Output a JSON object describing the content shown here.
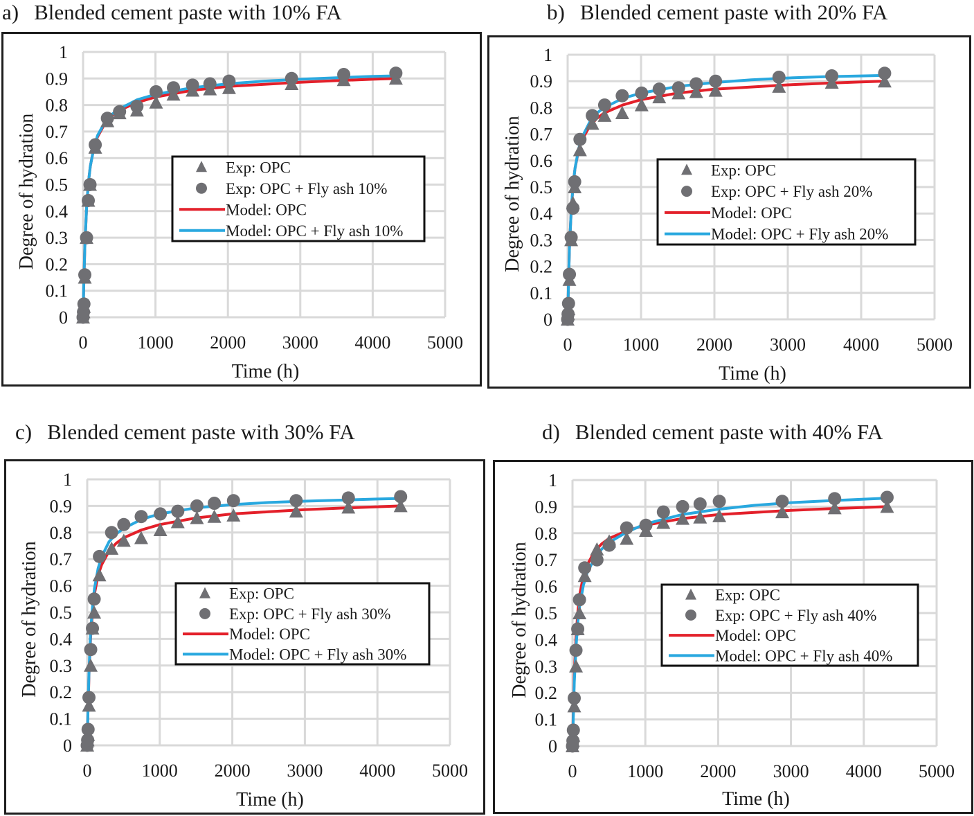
{
  "colors": {
    "marker": "#6f6f73",
    "model_opc": "#e3202a",
    "model_fa": "#29a8df",
    "grid": "#d9d9d9",
    "frame": "#1e1e1e"
  },
  "panels": [
    {
      "label": "a)",
      "title": "Blended cement paste with 10% FA"
    },
    {
      "label": "b)",
      "title": "Blended cement paste with 20% FA"
    },
    {
      "label": "c)",
      "title": "Blended cement paste with 30% FA"
    },
    {
      "label": "d)",
      "title": "Blended cement paste with 40% FA"
    }
  ],
  "chart_data": [
    {
      "type": "scatter",
      "title": "Blended cement paste with 10% FA",
      "xlabel": "Time (h)",
      "ylabel": "Degree of hydration",
      "xlim": [
        0,
        5000
      ],
      "ylim": [
        0,
        1
      ],
      "xticks": [
        "0",
        "1000",
        "2000",
        "3000",
        "4000",
        "5000"
      ],
      "yticks": [
        "0",
        "0.1",
        "0.2",
        "0.3",
        "0.4",
        "0.5",
        "0.6",
        "0.7",
        "0.8",
        "0.9",
        "1"
      ],
      "grid": true,
      "legend_position": "center-right",
      "legend": [
        "Exp: OPC",
        "Exp: OPC + Fly ash 10%",
        "Model: OPC",
        "Model: OPC + Fly ash 10%"
      ],
      "series": [
        {
          "name": "Exp: OPC",
          "kind": "triangle",
          "x": [
            0,
            6,
            12,
            24,
            48,
            72,
            96,
            168,
            336,
            504,
            744,
            1008,
            1248,
            1512,
            1752,
            2016,
            2880,
            3600,
            4320
          ],
          "y": [
            0,
            0.02,
            0.04,
            0.15,
            0.3,
            0.44,
            0.5,
            0.64,
            0.74,
            0.77,
            0.78,
            0.81,
            0.84,
            0.855,
            0.86,
            0.865,
            0.88,
            0.895,
            0.9
          ]
        },
        {
          "name": "Exp: OPC + Fly ash 10%",
          "kind": "circle",
          "x": [
            0,
            6,
            12,
            24,
            48,
            72,
            96,
            168,
            336,
            504,
            744,
            1008,
            1248,
            1512,
            1752,
            2016,
            2880,
            3600,
            4320
          ],
          "y": [
            0,
            0.02,
            0.05,
            0.16,
            0.3,
            0.44,
            0.5,
            0.65,
            0.75,
            0.775,
            0.795,
            0.85,
            0.865,
            0.875,
            0.88,
            0.89,
            0.9,
            0.915,
            0.92
          ]
        },
        {
          "name": "Model: OPC",
          "kind": "line",
          "x": [
            0,
            10,
            25,
            50,
            75,
            100,
            150,
            200,
            300,
            400,
            500,
            750,
            1000,
            1500,
            2000,
            2500,
            3000,
            3500,
            4000,
            4320
          ],
          "y": [
            0,
            0.12,
            0.27,
            0.42,
            0.51,
            0.57,
            0.64,
            0.68,
            0.73,
            0.76,
            0.78,
            0.81,
            0.83,
            0.855,
            0.87,
            0.878,
            0.886,
            0.892,
            0.897,
            0.9
          ]
        },
        {
          "name": "Model: OPC + Fly ash 10%",
          "kind": "line",
          "x": [
            0,
            10,
            25,
            50,
            75,
            100,
            150,
            200,
            300,
            400,
            500,
            750,
            1000,
            1500,
            2000,
            2500,
            3000,
            3500,
            4000,
            4320
          ],
          "y": [
            0,
            0.12,
            0.27,
            0.42,
            0.51,
            0.57,
            0.64,
            0.685,
            0.735,
            0.765,
            0.785,
            0.82,
            0.84,
            0.865,
            0.88,
            0.89,
            0.897,
            0.903,
            0.908,
            0.91
          ]
        }
      ]
    },
    {
      "type": "scatter",
      "title": "Blended cement paste with 20% FA",
      "xlabel": "Time (h)",
      "ylabel": "Degree of hydration",
      "xlim": [
        0,
        5000
      ],
      "ylim": [
        0,
        1
      ],
      "xticks": [
        "0",
        "1000",
        "2000",
        "3000",
        "4000",
        "5000"
      ],
      "yticks": [
        "0",
        "0.1",
        "0.2",
        "0.3",
        "0.4",
        "0.5",
        "0.6",
        "0.7",
        "0.8",
        "0.9",
        "1"
      ],
      "grid": true,
      "legend_position": "center-right",
      "legend": [
        "Exp: OPC",
        "Exp: OPC + Fly ash 20%",
        "Model: OPC",
        "Model: OPC + Fly ash 20%"
      ],
      "series": [
        {
          "name": "Exp: OPC",
          "kind": "triangle",
          "x": [
            0,
            6,
            12,
            24,
            48,
            72,
            96,
            168,
            336,
            504,
            744,
            1008,
            1248,
            1512,
            1752,
            2016,
            2880,
            3600,
            4320
          ],
          "y": [
            0,
            0.02,
            0.04,
            0.15,
            0.3,
            0.44,
            0.5,
            0.64,
            0.74,
            0.77,
            0.78,
            0.81,
            0.84,
            0.855,
            0.86,
            0.865,
            0.88,
            0.895,
            0.9
          ]
        },
        {
          "name": "Exp: OPC + Fly ash 20%",
          "kind": "circle",
          "x": [
            0,
            6,
            12,
            24,
            48,
            72,
            96,
            168,
            336,
            504,
            744,
            1008,
            1248,
            1512,
            1752,
            2016,
            2880,
            3600,
            4320
          ],
          "y": [
            0,
            0.02,
            0.06,
            0.17,
            0.31,
            0.42,
            0.52,
            0.68,
            0.77,
            0.81,
            0.845,
            0.855,
            0.87,
            0.875,
            0.89,
            0.9,
            0.915,
            0.92,
            0.93
          ]
        },
        {
          "name": "Model: OPC",
          "kind": "line",
          "x": [
            0,
            10,
            25,
            50,
            75,
            100,
            150,
            200,
            300,
            400,
            500,
            750,
            1000,
            1500,
            2000,
            2500,
            3000,
            3500,
            4000,
            4320
          ],
          "y": [
            0,
            0.12,
            0.27,
            0.42,
            0.51,
            0.57,
            0.64,
            0.68,
            0.73,
            0.76,
            0.78,
            0.81,
            0.83,
            0.855,
            0.87,
            0.878,
            0.886,
            0.892,
            0.897,
            0.9
          ]
        },
        {
          "name": "Model: OPC + Fly ash 20%",
          "kind": "line",
          "x": [
            0,
            10,
            25,
            50,
            75,
            100,
            150,
            200,
            300,
            400,
            500,
            750,
            1000,
            1500,
            2000,
            2500,
            3000,
            3500,
            4000,
            4320
          ],
          "y": [
            0,
            0.12,
            0.27,
            0.42,
            0.51,
            0.57,
            0.645,
            0.69,
            0.745,
            0.78,
            0.8,
            0.835,
            0.855,
            0.88,
            0.895,
            0.905,
            0.912,
            0.917,
            0.92,
            0.922
          ]
        }
      ]
    },
    {
      "type": "scatter",
      "title": "Blended cement paste with 30% FA",
      "xlabel": "Time (h)",
      "ylabel": "Degree of hydration",
      "xlim": [
        0,
        5000
      ],
      "ylim": [
        0,
        1
      ],
      "xticks": [
        "0",
        "1000",
        "2000",
        "3000",
        "4000",
        "5000"
      ],
      "yticks": [
        "0",
        "0.1",
        "0.2",
        "0.3",
        "0.4",
        "0.5",
        "0.6",
        "0.7",
        "0.8",
        "0.9",
        "1"
      ],
      "grid": true,
      "legend_position": "center-right",
      "legend": [
        "Exp: OPC",
        "Exp: OPC + Fly ash 30%",
        "Model: OPC",
        "Model: OPC + Fly ash 30%"
      ],
      "series": [
        {
          "name": "Exp: OPC",
          "kind": "triangle",
          "x": [
            0,
            6,
            12,
            24,
            48,
            72,
            96,
            168,
            336,
            504,
            744,
            1008,
            1248,
            1512,
            1752,
            2016,
            2880,
            3600,
            4320
          ],
          "y": [
            0,
            0.02,
            0.04,
            0.15,
            0.3,
            0.44,
            0.5,
            0.64,
            0.74,
            0.77,
            0.78,
            0.81,
            0.84,
            0.855,
            0.86,
            0.865,
            0.88,
            0.895,
            0.9
          ]
        },
        {
          "name": "Exp: OPC + Fly ash 30%",
          "kind": "circle",
          "x": [
            0,
            6,
            12,
            24,
            48,
            72,
            96,
            168,
            336,
            504,
            744,
            1008,
            1248,
            1512,
            1752,
            2016,
            2880,
            3600,
            4320
          ],
          "y": [
            0,
            0.02,
            0.06,
            0.18,
            0.36,
            0.44,
            0.55,
            0.71,
            0.8,
            0.83,
            0.86,
            0.87,
            0.88,
            0.9,
            0.91,
            0.92,
            0.92,
            0.93,
            0.935
          ]
        },
        {
          "name": "Model: OPC",
          "kind": "line",
          "x": [
            0,
            10,
            25,
            50,
            75,
            100,
            150,
            200,
            300,
            400,
            500,
            750,
            1000,
            1500,
            2000,
            2500,
            3000,
            3500,
            4000,
            4320
          ],
          "y": [
            0,
            0.12,
            0.27,
            0.42,
            0.51,
            0.57,
            0.64,
            0.68,
            0.73,
            0.76,
            0.78,
            0.81,
            0.83,
            0.855,
            0.87,
            0.878,
            0.886,
            0.892,
            0.897,
            0.9
          ]
        },
        {
          "name": "Model: OPC + Fly ash 30%",
          "kind": "line",
          "x": [
            0,
            10,
            25,
            50,
            75,
            100,
            150,
            200,
            300,
            400,
            500,
            750,
            1000,
            1500,
            2000,
            2500,
            3000,
            3500,
            4000,
            4320
          ],
          "y": [
            0,
            0.12,
            0.28,
            0.44,
            0.53,
            0.59,
            0.665,
            0.71,
            0.765,
            0.795,
            0.815,
            0.85,
            0.87,
            0.893,
            0.905,
            0.913,
            0.918,
            0.922,
            0.926,
            0.928
          ]
        }
      ]
    },
    {
      "type": "scatter",
      "title": "Blended cement paste with 40% FA",
      "xlabel": "Time (h)",
      "ylabel": "Degree of hydration",
      "xlim": [
        0,
        5000
      ],
      "ylim": [
        0,
        1
      ],
      "xticks": [
        "0",
        "1000",
        "2000",
        "3000",
        "4000",
        "5000"
      ],
      "yticks": [
        "0",
        "0.1",
        "0.2",
        "0.3",
        "0.4",
        "0.5",
        "0.6",
        "0.7",
        "0.8",
        "0.9",
        "1"
      ],
      "grid": true,
      "legend_position": "center-right",
      "legend": [
        "Exp: OPC",
        "Exp: OPC + Fly ash 40%",
        "Model: OPC",
        "Model: OPC + Fly ash 40%"
      ],
      "series": [
        {
          "name": "Exp: OPC",
          "kind": "triangle",
          "x": [
            0,
            6,
            12,
            24,
            48,
            72,
            96,
            168,
            336,
            504,
            744,
            1008,
            1248,
            1512,
            1752,
            2016,
            2880,
            3600,
            4320
          ],
          "y": [
            0,
            0.02,
            0.04,
            0.15,
            0.3,
            0.44,
            0.5,
            0.64,
            0.74,
            0.77,
            0.78,
            0.81,
            0.84,
            0.855,
            0.86,
            0.865,
            0.88,
            0.895,
            0.9
          ]
        },
        {
          "name": "Exp: OPC + Fly ash 40%",
          "kind": "circle",
          "x": [
            0,
            6,
            12,
            24,
            48,
            72,
            96,
            168,
            336,
            504,
            744,
            1008,
            1248,
            1512,
            1752,
            2016,
            2880,
            3600,
            4320
          ],
          "y": [
            0,
            0.02,
            0.06,
            0.18,
            0.36,
            0.44,
            0.55,
            0.67,
            0.7,
            0.755,
            0.82,
            0.83,
            0.88,
            0.9,
            0.91,
            0.92,
            0.92,
            0.93,
            0.935
          ]
        },
        {
          "name": "Model: OPC",
          "kind": "line",
          "x": [
            0,
            10,
            25,
            50,
            75,
            100,
            150,
            200,
            300,
            400,
            500,
            750,
            1000,
            1500,
            2000,
            2500,
            3000,
            3500,
            4000,
            4320
          ],
          "y": [
            0,
            0.12,
            0.27,
            0.42,
            0.51,
            0.57,
            0.64,
            0.68,
            0.73,
            0.76,
            0.78,
            0.81,
            0.83,
            0.855,
            0.87,
            0.878,
            0.886,
            0.892,
            0.897,
            0.9
          ]
        },
        {
          "name": "Model: OPC + Fly ash 40%",
          "kind": "line",
          "x": [
            0,
            10,
            25,
            50,
            75,
            100,
            150,
            200,
            300,
            400,
            500,
            750,
            1000,
            1500,
            2000,
            2500,
            3000,
            3500,
            4000,
            4320
          ],
          "y": [
            0,
            0.1,
            0.24,
            0.38,
            0.47,
            0.53,
            0.605,
            0.65,
            0.705,
            0.74,
            0.765,
            0.805,
            0.835,
            0.87,
            0.89,
            0.905,
            0.915,
            0.922,
            0.928,
            0.932
          ]
        }
      ]
    }
  ]
}
